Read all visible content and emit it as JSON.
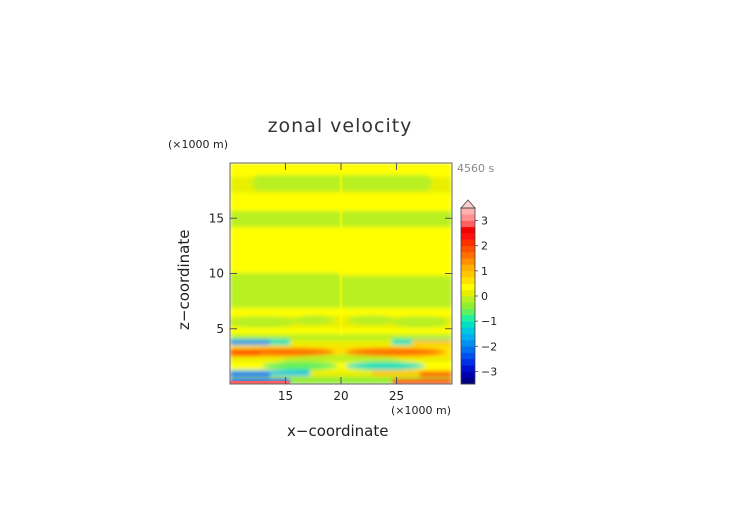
{
  "chart_data": {
    "type": "heatmap",
    "title": "zonal velocity",
    "time_label": "4560 s",
    "x_unit": "(×1000 m)",
    "y_unit": "(×1000 m)",
    "xlabel": "x−coordinate",
    "ylabel": "z−coordinate",
    "xlim": [
      10,
      30
    ],
    "ylim": [
      0,
      20
    ],
    "x_ticks": [
      "15",
      "20",
      "25"
    ],
    "y_ticks": [
      "5",
      "10",
      "15"
    ],
    "colorbar": {
      "levels": [
        -3.5,
        -3.25,
        -3,
        -2.75,
        -2.5,
        -2.25,
        -2,
        -1.75,
        -1.5,
        -1.25,
        -1,
        -0.75,
        -0.5,
        -0.25,
        0,
        0.25,
        0.5,
        0.75,
        1,
        1.25,
        1.5,
        1.75,
        2,
        2.25,
        2.5,
        2.75,
        3,
        3.25,
        3.5
      ],
      "colors": [
        "#000080",
        "#0000b0",
        "#0010d0",
        "#0030e8",
        "#0050f0",
        "#0070f0",
        "#0090f0",
        "#00b0f0",
        "#00c8e0",
        "#00e0c0",
        "#20f0a0",
        "#60f060",
        "#90ee30",
        "#b8f020",
        "#e8f000",
        "#ffff00",
        "#ffe000",
        "#ffc800",
        "#ffb000",
        "#ff9000",
        "#ff7000",
        "#ff5000",
        "#ff3000",
        "#ff1010",
        "#f00000",
        "#ff6060",
        "#ff9090",
        "#ffb0b0"
      ],
      "tick_labels": [
        "3",
        "2",
        "1",
        "0",
        "−1",
        "−2",
        "−3"
      ],
      "tick_values": [
        3,
        2,
        1,
        0,
        -1,
        -2,
        -3
      ],
      "extend": "max"
    }
  }
}
